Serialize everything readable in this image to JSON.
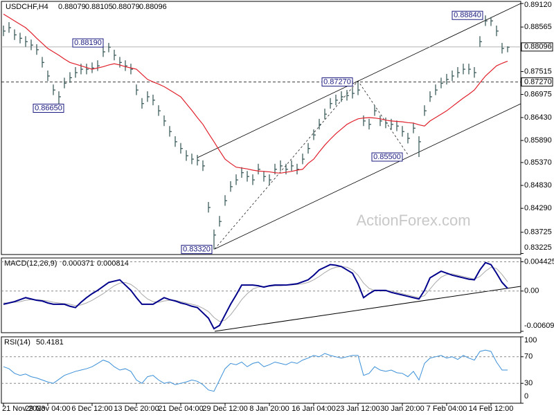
{
  "header": {
    "symbol": "USDCHF,H4",
    "open": 0.88079,
    "high": 0.88105,
    "low": 0.88079,
    "close": 0.88096
  },
  "watermark": "ActionForex.com",
  "chart_data": [
    {
      "type": "ohlc",
      "categories": [
        "21 Nov 2023",
        null,
        null,
        null,
        null,
        null,
        null,
        null,
        "29 Nov 04:00",
        null,
        null,
        null,
        null,
        null,
        null,
        null,
        "6 Dec 12:00",
        null,
        null,
        null,
        null,
        null,
        null,
        null,
        "13 Dec 20:00",
        null,
        null,
        null,
        null,
        null,
        null,
        null,
        "21 Dec 04:00",
        null,
        null,
        null,
        null,
        null,
        null,
        null,
        "29 Dec 12:00",
        null,
        null,
        null,
        null,
        null,
        null,
        null,
        "8 Jan 20:00",
        null,
        null,
        null,
        null,
        null,
        null,
        null,
        "16 Jan 04:00",
        null,
        null,
        null,
        null,
        null,
        null,
        null,
        "23 Jan 12:00",
        null,
        null,
        null,
        null,
        null,
        null,
        null,
        "30 Jan 20:00",
        null,
        null,
        null,
        null,
        null,
        null,
        null,
        "7 Feb 04:00",
        null,
        null,
        null,
        null,
        null,
        null,
        null,
        "14 Feb 12:00",
        null,
        null,
        null
      ],
      "high": [
        0.886,
        0.8868,
        0.8851,
        0.8843,
        0.8835,
        0.8827,
        0.8816,
        0.8786,
        0.8754,
        0.8721,
        0.8705,
        0.8737,
        0.875,
        0.8762,
        0.877,
        0.877,
        0.8773,
        0.8778,
        0.8811,
        0.8819,
        0.8803,
        0.8786,
        0.8778,
        0.877,
        0.8721,
        0.8689,
        0.8705,
        0.8697,
        0.8672,
        0.8648,
        0.8623,
        0.8599,
        0.8583,
        0.8566,
        0.8558,
        0.8555,
        0.8542,
        0.8444,
        0.8379,
        0.8411,
        0.846,
        0.8493,
        0.8509,
        0.8526,
        0.8517,
        0.8509,
        0.8534,
        0.8517,
        0.8509,
        0.8534,
        0.8542,
        0.8534,
        0.8542,
        0.8534,
        0.8558,
        0.8583,
        0.8615,
        0.864,
        0.8664,
        0.8689,
        0.8697,
        0.8705,
        0.8708,
        0.8713,
        0.8727,
        0.8648,
        0.864,
        0.8672,
        0.8648,
        0.8643,
        0.864,
        0.8636,
        0.8623,
        0.8607,
        0.8631,
        0.8599,
        0.8672,
        0.8705,
        0.8721,
        0.8737,
        0.8746,
        0.8754,
        0.8762,
        0.877,
        0.877,
        0.8762,
        0.8835,
        0.8884,
        0.888,
        0.886,
        0.8819,
        0.8811
      ],
      "low": [
        0.8835,
        0.8843,
        0.8826,
        0.8818,
        0.881,
        0.8802,
        0.8791,
        0.8761,
        0.8729,
        0.8696,
        0.8665,
        0.8712,
        0.8725,
        0.8737,
        0.8745,
        0.8745,
        0.8748,
        0.8753,
        0.8786,
        0.8797,
        0.8778,
        0.8761,
        0.8753,
        0.8745,
        0.8696,
        0.8664,
        0.868,
        0.8672,
        0.8647,
        0.8623,
        0.8598,
        0.8574,
        0.8558,
        0.8541,
        0.8533,
        0.853,
        0.8517,
        0.8419,
        0.8332,
        0.8386,
        0.8435,
        0.8468,
        0.8484,
        0.8501,
        0.8492,
        0.8484,
        0.8509,
        0.8492,
        0.8484,
        0.8509,
        0.8517,
        0.8509,
        0.8517,
        0.8509,
        0.8533,
        0.8558,
        0.859,
        0.8615,
        0.8639,
        0.8664,
        0.8672,
        0.868,
        0.8683,
        0.8688,
        0.8696,
        0.8623,
        0.8615,
        0.8647,
        0.8623,
        0.8618,
        0.8615,
        0.8611,
        0.8598,
        0.8582,
        0.8606,
        0.855,
        0.8647,
        0.868,
        0.8696,
        0.8712,
        0.8721,
        0.8729,
        0.8737,
        0.8745,
        0.8745,
        0.8737,
        0.881,
        0.8859,
        0.8859,
        0.8835,
        0.8794,
        0.8797
      ],
      "close": [
        0.8847,
        0.8855,
        0.8838,
        0.883,
        0.8822,
        0.8814,
        0.8803,
        0.8773,
        0.8741,
        0.8708,
        0.8692,
        0.8724,
        0.8737,
        0.8749,
        0.8757,
        0.8757,
        0.876,
        0.8765,
        0.8798,
        0.8809,
        0.879,
        0.8773,
        0.8765,
        0.8757,
        0.8708,
        0.8676,
        0.8692,
        0.8684,
        0.8659,
        0.8635,
        0.861,
        0.8586,
        0.857,
        0.8553,
        0.8545,
        0.8542,
        0.8529,
        0.8431,
        0.8366,
        0.8398,
        0.8447,
        0.848,
        0.8496,
        0.8513,
        0.8504,
        0.8496,
        0.8521,
        0.8504,
        0.8496,
        0.8521,
        0.8529,
        0.8521,
        0.8529,
        0.8521,
        0.8545,
        0.857,
        0.8602,
        0.8627,
        0.8651,
        0.8676,
        0.8684,
        0.8692,
        0.8695,
        0.87,
        0.8708,
        0.8635,
        0.8627,
        0.8659,
        0.8635,
        0.863,
        0.8627,
        0.8623,
        0.861,
        0.8594,
        0.8618,
        0.8586,
        0.8659,
        0.8692,
        0.8708,
        0.8724,
        0.8733,
        0.8741,
        0.8749,
        0.8757,
        0.8757,
        0.8749,
        0.8822,
        0.8871,
        0.8871,
        0.8847,
        0.8806,
        0.8809
      ],
      "color": "#2f4f4f",
      "moving_average": {
        "color": "#e0202b",
        "values": [
          0.8887,
          0.8879,
          0.8871,
          0.8863,
          0.8855,
          0.8843,
          0.883,
          0.8818,
          0.8806,
          0.8798,
          0.879,
          0.8781,
          0.8773,
          0.8769,
          0.8765,
          0.8761,
          0.8757,
          0.876,
          0.8763,
          0.8767,
          0.877,
          0.8767,
          0.8763,
          0.876,
          0.8757,
          0.8745,
          0.8733,
          0.8727,
          0.8722,
          0.8716,
          0.8708,
          0.87,
          0.8692,
          0.8676,
          0.866,
          0.8643,
          0.8627,
          0.8606,
          0.8586,
          0.8565,
          0.8545,
          0.8535,
          0.8526,
          0.8524,
          0.8522,
          0.8519,
          0.8517,
          0.8516,
          0.8515,
          0.8513,
          0.8512,
          0.8514,
          0.8516,
          0.8519,
          0.8521,
          0.8535,
          0.8545,
          0.8562,
          0.8578,
          0.8592,
          0.8605,
          0.8616,
          0.8627,
          0.8634,
          0.864,
          0.8642,
          0.8643,
          0.8642,
          0.864,
          0.8637,
          0.8635,
          0.8634,
          0.8633,
          0.8631,
          0.863,
          0.8626,
          0.8623,
          0.8635,
          0.8643,
          0.8651,
          0.8659,
          0.8669,
          0.8679,
          0.8689,
          0.8698,
          0.8708,
          0.8725,
          0.8741,
          0.8753,
          0.8765,
          0.8771,
          0.8776
        ]
      },
      "ylim": [
        0.832,
        0.8917
      ],
      "yticks": [
        {
          "value": 0.8912,
          "label": "0.89120"
        },
        0.88565,
        0.87515,
        0.86975,
        {
          "value": 0.8643,
          "label": "0.86430"
        },
        {
          "value": 0.8589,
          "label": "0.85890"
        },
        {
          "value": 0.8537,
          "label": "0.85370"
        },
        {
          "value": 0.8483,
          "label": "0.84830"
        },
        {
          "value": 0.8429,
          "label": "0.84290"
        },
        0.83725,
        0.83225
      ],
      "current_price": {
        "value": 0.88096,
        "label": "0.88096"
      },
      "level": {
        "value": 0.8727,
        "label": "0.87270"
      },
      "annotations": [
        {
          "value": 0.8819,
          "label": "0.88190"
        },
        {
          "value": 0.8665,
          "label": "0.86650"
        },
        {
          "value": 0.8332,
          "label": "0.83320"
        },
        {
          "value": 0.8727,
          "label": "0.87270"
        },
        {
          "value": 0.855,
          "label": "0.85500"
        },
        {
          "value": 0.8884,
          "label": "0.88840"
        }
      ]
    },
    {
      "type": "macd",
      "title": "MACD(12,26,9)",
      "header_values": [
        0.000371,
        0.000814
      ],
      "series": [
        {
          "color": "#00008b",
          "values": [
            -0.002,
            -0.0018,
            -0.0016,
            -0.0013,
            -0.001,
            -0.0012,
            -0.0014,
            -0.0015,
            -0.0018,
            -0.002,
            -0.002,
            -0.002,
            -0.0023,
            -0.0025,
            -0.0017,
            -0.001,
            -0.0004,
            0.0001,
            0.0007,
            0.0013,
            0.0015,
            0.0017,
            0.0009,
            0.0001,
            -0.001,
            -0.002,
            -0.002,
            -0.002,
            -0.0015,
            -0.001,
            -0.0013,
            -0.0015,
            -0.0018,
            -0.002,
            -0.0023,
            -0.0025,
            -0.0033,
            -0.0041,
            -0.0057,
            -0.0052,
            -0.0036,
            -0.002,
            -0.0006,
            0.0009,
            0.0009,
            0.0009,
            0.0008,
            0.0006,
            0.0008,
            0.0009,
            0.0009,
            0.0009,
            0.001,
            0.0011,
            0.0014,
            0.0017,
            0.0024,
            0.0032,
            0.0036,
            0.004,
            0.0039,
            0.0037,
            0.0032,
            0.0027,
            0.0011,
            -0.001,
            -0.0004,
            0.0001,
            0.0001,
            0.0001,
            -0.0002,
            -0.0004,
            -0.0006,
            -0.0008,
            -0.001,
            -0.0012,
            0.0001,
            0.002,
            0.0025,
            0.003,
            0.0027,
            0.0024,
            0.0022,
            0.002,
            0.0018,
            0.0017,
            0.0032,
            0.0043,
            0.004,
            0.0027,
            0.0013,
            0.0004
          ]
        },
        {
          "color": "#a8a8a8",
          "values": [
            -0.0018,
            -0.0018,
            -0.0017,
            -0.0016,
            -0.0014,
            -0.0013,
            -0.0013,
            -0.0014,
            -0.0015,
            -0.0017,
            -0.0018,
            -0.0019,
            -0.002,
            -0.0022,
            -0.0021,
            -0.0018,
            -0.0014,
            -0.0009,
            -0.0004,
            0.0002,
            0.0008,
            0.0012,
            0.0013,
            0.001,
            0.0004,
            -0.0005,
            -0.0012,
            -0.0016,
            -0.0017,
            -0.0015,
            -0.0014,
            -0.0014,
            -0.0016,
            -0.0018,
            -0.002,
            -0.0022,
            -0.0026,
            -0.0031,
            -0.004,
            -0.0046,
            -0.0044,
            -0.0036,
            -0.0025,
            -0.0013,
            -0.0004,
            0.0003,
            0.0006,
            0.0007,
            0.0007,
            0.0008,
            0.0008,
            0.0009,
            0.0009,
            0.001,
            0.0011,
            0.0013,
            0.0017,
            0.0022,
            0.0028,
            0.0033,
            0.0036,
            0.0037,
            0.0036,
            0.0032,
            0.0024,
            0.0012,
            0.0004,
            0.0001,
            0.0,
            0.0,
            0.0,
            -0.0002,
            -0.0004,
            -0.0006,
            -0.0008,
            -0.001,
            -0.0007,
            0.0003,
            0.0013,
            0.0021,
            0.0025,
            0.0026,
            0.0024,
            0.0022,
            0.002,
            0.0018,
            0.0022,
            0.003,
            0.0036,
            0.0034,
            0.0025,
            0.0014
          ]
        }
      ],
      "ylim": [
        -0.0063,
        0.005
      ],
      "yticks": [
        0.004425,
        {
          "value": 0,
          "label": "0.00"
        },
        -0.006092
      ]
    },
    {
      "type": "rsi",
      "title": "RSI(14)",
      "last_value": 50.4181,
      "color": "#3a8fd8",
      "values": [
        55,
        52,
        45,
        42,
        44,
        40,
        38,
        35,
        32,
        30,
        36,
        42,
        45,
        48,
        50,
        52,
        55,
        60,
        65,
        62,
        55,
        50,
        52,
        48,
        35,
        30,
        40,
        42,
        35,
        30,
        32,
        28,
        30,
        32,
        35,
        33,
        28,
        20,
        18,
        35,
        52,
        60,
        58,
        62,
        55,
        60,
        62,
        55,
        58,
        62,
        60,
        58,
        62,
        60,
        65,
        68,
        72,
        70,
        75,
        72,
        70,
        68,
        70,
        72,
        72,
        42,
        45,
        55,
        50,
        48,
        50,
        46,
        45,
        40,
        48,
        35,
        60,
        68,
        70,
        72,
        68,
        70,
        66,
        72,
        68,
        65,
        78,
        80,
        78,
        62,
        50,
        50
      ],
      "ylim": [
        0,
        100
      ],
      "yticks": [
        100,
        70,
        30,
        0
      ]
    }
  ]
}
